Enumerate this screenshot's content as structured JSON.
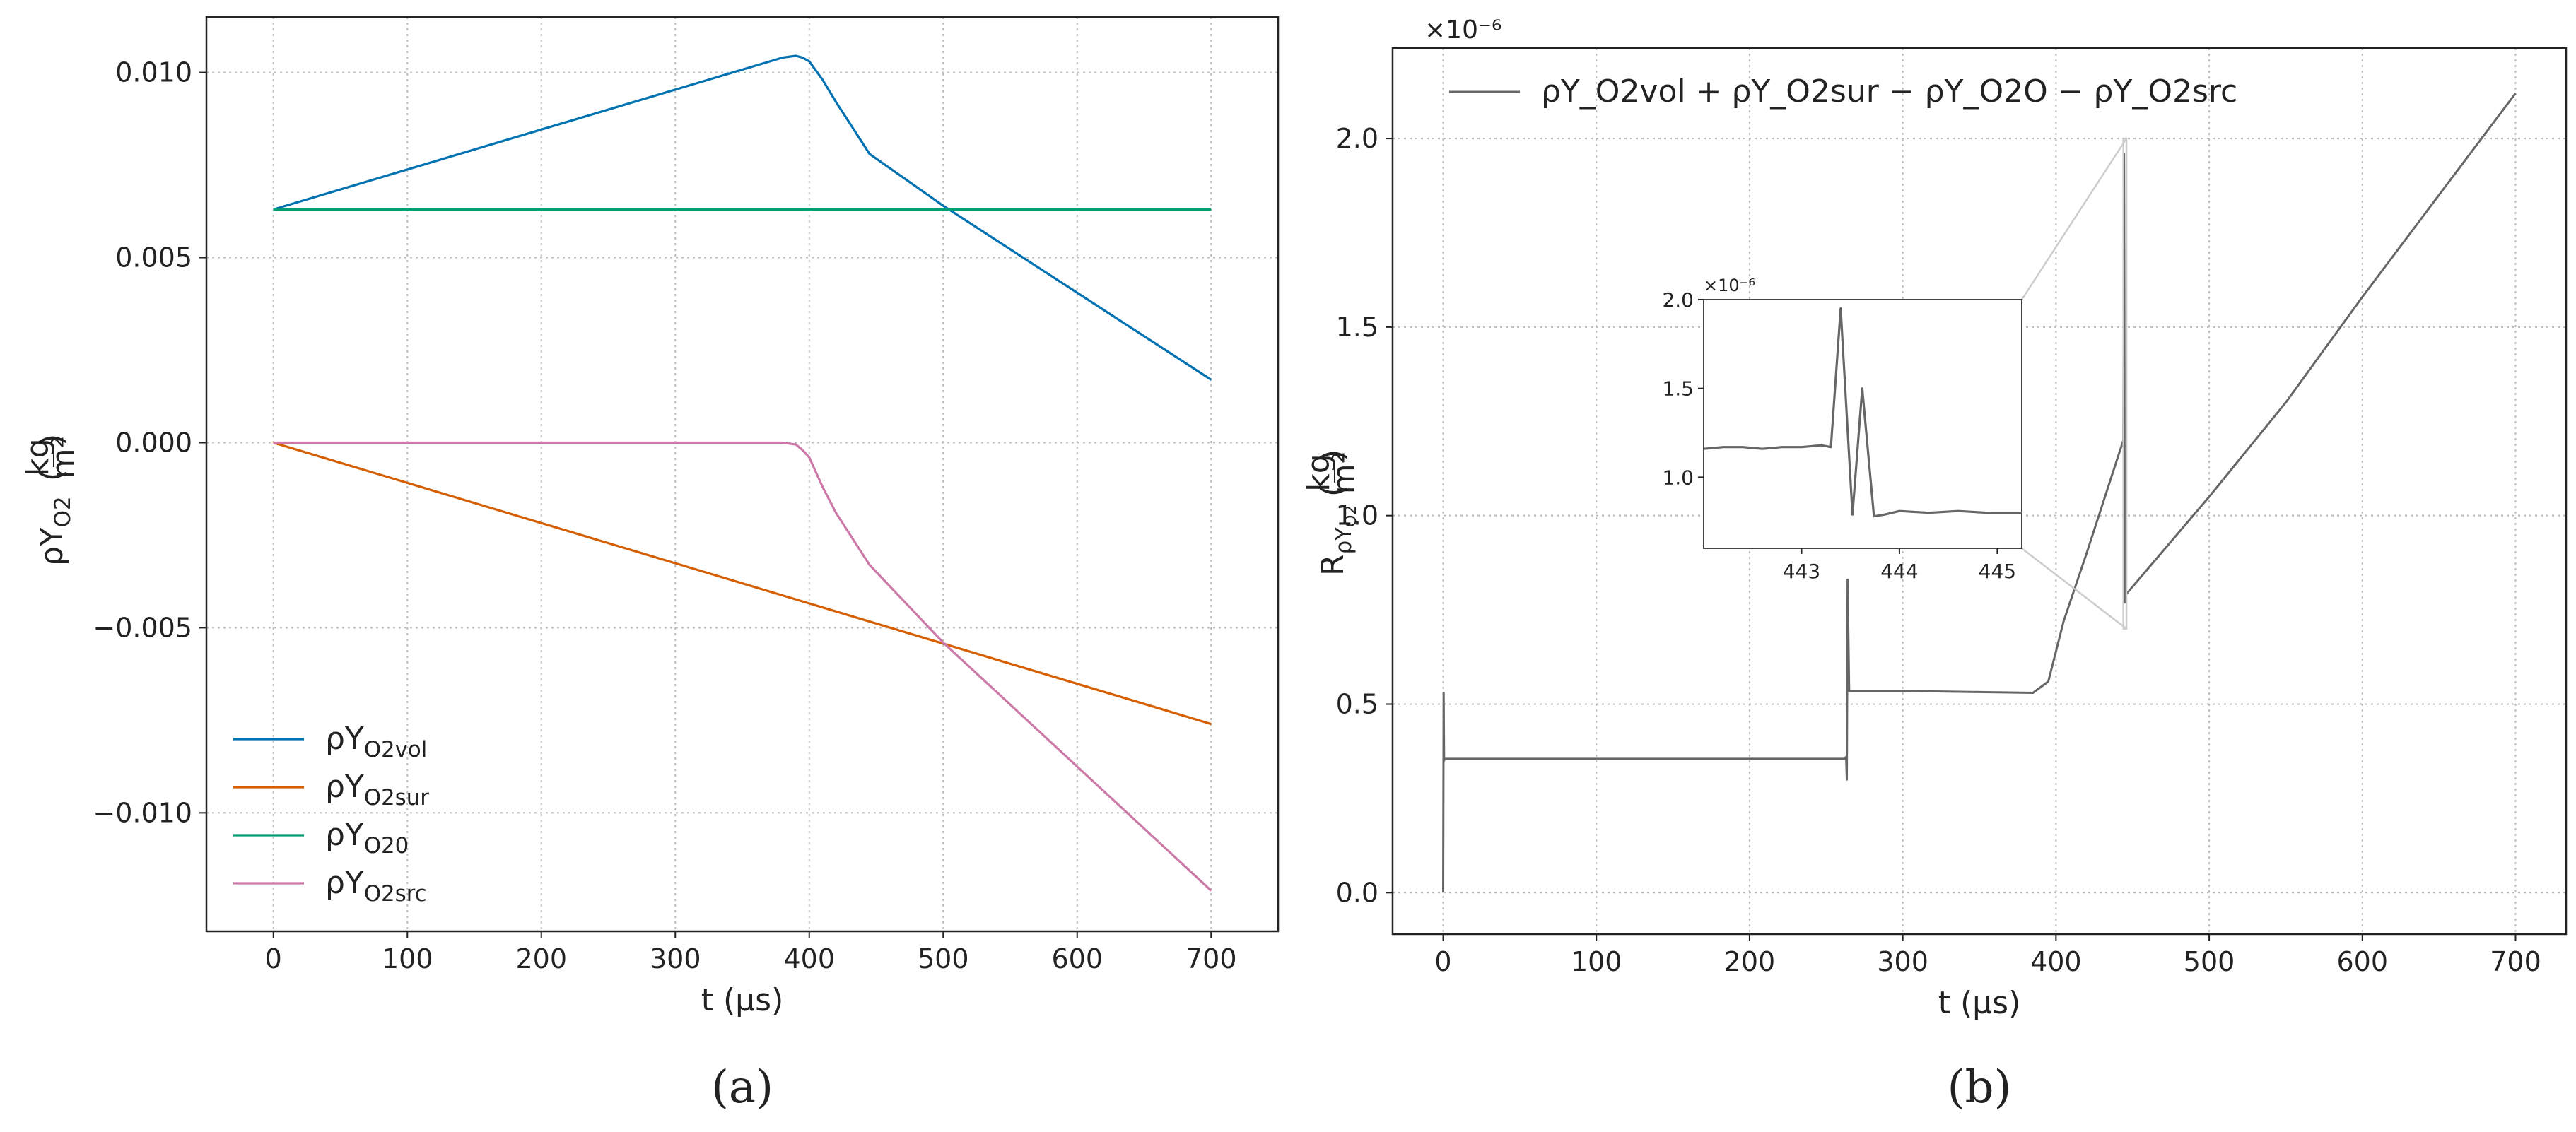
{
  "panel_labels": {
    "a": "(a)",
    "b": "(b)"
  },
  "colors": {
    "vol": "#0072b2",
    "sur": "#d55e00",
    "o20": "#009e73",
    "src": "#cc79a7",
    "residual": "#666666",
    "grid": "#bbbbbb",
    "zoom_box": "#cccccc"
  },
  "chart_data": [
    {
      "id": "a",
      "type": "line",
      "xlabel": "t (μs)",
      "ylabel": "ρY",
      "ylabel_sub": "O2",
      "ylabel_unit_num": "kg",
      "ylabel_unit_den": "m²",
      "xlim": [
        -50,
        750
      ],
      "ylim": [
        -0.0132,
        0.0115
      ],
      "xticks": [
        0,
        100,
        200,
        300,
        400,
        500,
        600,
        700
      ],
      "xtick_labels": [
        "0",
        "100",
        "200",
        "300",
        "400",
        "500",
        "600",
        "700"
      ],
      "yticks": [
        -0.01,
        -0.005,
        0.0,
        0.005,
        0.01
      ],
      "ytick_labels": [
        "−0.010",
        "−0.005",
        "0.000",
        "0.005",
        "0.010"
      ],
      "grid": true,
      "legend_position": "lower-left",
      "series": [
        {
          "key": "vol",
          "name": "ρY",
          "sub": "O2vol",
          "x": [
            0,
            380,
            390,
            395,
            400,
            410,
            420,
            445,
            500,
            700
          ],
          "y": [
            0.0063,
            0.0104,
            0.01045,
            0.0104,
            0.0103,
            0.0098,
            0.0092,
            0.0078,
            0.0064,
            0.0017
          ]
        },
        {
          "key": "sur",
          "name": "ρY",
          "sub": "O2sur",
          "x": [
            0,
            700
          ],
          "y": [
            0.0,
            -0.0076
          ]
        },
        {
          "key": "o20",
          "name": "ρY",
          "sub": "O20",
          "x": [
            0,
            700
          ],
          "y": [
            0.0063,
            0.0063
          ]
        },
        {
          "key": "src",
          "name": "ρY",
          "sub": "O2src",
          "x": [
            0,
            380,
            390,
            395,
            400,
            410,
            420,
            445,
            500,
            700
          ],
          "y": [
            0.0,
            0.0,
            -5e-05,
            -0.0002,
            -0.0004,
            -0.0012,
            -0.0019,
            -0.0033,
            -0.0054,
            -0.0121
          ]
        }
      ]
    },
    {
      "id": "b",
      "type": "line",
      "xlabel": "t (μs)",
      "ylabel": "R",
      "ylabel_sub": "ρY",
      "ylabel_subsub": "O2",
      "ylabel_unit_num": "kg",
      "ylabel_unit_den": "m²",
      "offset_label": "×10⁻⁶",
      "xlim": [
        -33,
        733
      ],
      "ylim": [
        -0.11,
        2.24
      ],
      "xticks": [
        0,
        100,
        200,
        300,
        400,
        500,
        600,
        700
      ],
      "xtick_labels": [
        "0",
        "100",
        "200",
        "300",
        "400",
        "500",
        "600",
        "700"
      ],
      "yticks": [
        0.0,
        0.5,
        1.0,
        1.5,
        2.0
      ],
      "ytick_labels": [
        "0.0",
        "0.5",
        "1.0",
        "1.5",
        "2.0"
      ],
      "grid": true,
      "legend_position": "top-left",
      "legend_label": "ρY_O2vol + ρY_O2sur − ρY_O2O − ρY_O2src",
      "series": [
        {
          "key": "residual",
          "x": [
            0,
            0.3,
            0.6,
            1,
            262,
            263,
            263.5,
            264,
            265,
            300,
            350,
            385,
            395,
            405,
            420,
            440,
            444,
            444.4,
            445,
            445.5,
            500,
            550,
            600,
            650,
            700
          ],
          "y": [
            0.0,
            0.53,
            0.35,
            0.355,
            0.355,
            0.36,
            0.3,
            0.83,
            0.535,
            0.535,
            0.532,
            0.53,
            0.56,
            0.72,
            0.9,
            1.15,
            1.2,
            1.96,
            0.77,
            0.79,
            1.05,
            1.3,
            1.58,
            1.85,
            2.12
          ]
        }
      ],
      "inset": {
        "offset_label": "×10⁻⁶",
        "xlim": [
          442.0,
          445.25
        ],
        "ylim": [
          0.6,
          2.0
        ],
        "xticks": [
          443,
          444,
          445
        ],
        "xtick_labels": [
          "443",
          "444",
          "445"
        ],
        "yticks": [
          1.0,
          1.5,
          2.0
        ],
        "ytick_labels": [
          "1.0",
          "1.5",
          "2.0"
        ],
        "zoom_region": {
          "x": [
            444.0,
            446.0
          ],
          "y": [
            0.7,
            2.0
          ]
        },
        "series": {
          "x": [
            442.0,
            442.2,
            442.4,
            442.6,
            442.8,
            443.0,
            443.2,
            443.3,
            443.4,
            443.52,
            443.62,
            443.74,
            443.85,
            444.0,
            444.3,
            444.6,
            444.9,
            445.25
          ],
          "y": [
            1.16,
            1.17,
            1.17,
            1.16,
            1.17,
            1.17,
            1.18,
            1.17,
            1.95,
            0.79,
            1.5,
            0.78,
            0.79,
            0.81,
            0.8,
            0.81,
            0.8,
            0.8
          ]
        }
      }
    }
  ]
}
